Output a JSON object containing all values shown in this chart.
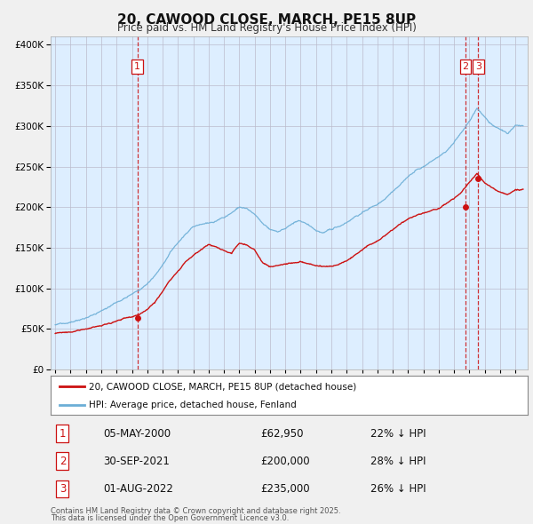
{
  "title": "20, CAWOOD CLOSE, MARCH, PE15 8UP",
  "subtitle": "Price paid vs. HM Land Registry's House Price Index (HPI)",
  "legend_line1": "20, CAWOOD CLOSE, MARCH, PE15 8UP (detached house)",
  "legend_line2": "HPI: Average price, detached house, Fenland",
  "footer1": "Contains HM Land Registry data © Crown copyright and database right 2025.",
  "footer2": "This data is licensed under the Open Government Licence v3.0.",
  "transactions": [
    {
      "num": 1,
      "date": "05-MAY-2000",
      "price": "£62,950",
      "pct": "22% ↓ HPI",
      "year": 2000.35
    },
    {
      "num": 2,
      "date": "30-SEP-2021",
      "price": "£200,000",
      "pct": "28% ↓ HPI",
      "year": 2021.75
    },
    {
      "num": 3,
      "date": "01-AUG-2022",
      "price": "£235,000",
      "pct": "26% ↓ HPI",
      "year": 2022.58
    }
  ],
  "vline_years": [
    2000.35,
    2021.75,
    2022.58
  ],
  "sale_points": [
    {
      "year": 2000.35,
      "price": 62950
    },
    {
      "year": 2021.75,
      "price": 200000
    },
    {
      "year": 2022.58,
      "price": 235000
    }
  ],
  "hpi_color": "#6baed6",
  "price_color": "#cc1111",
  "background_color": "#f0f0f0",
  "plot_bg_color": "#ddeeff",
  "ylim": [
    0,
    410000
  ],
  "xlim": [
    1994.7,
    2025.8
  ],
  "yticks": [
    0,
    50000,
    100000,
    150000,
    200000,
    250000,
    300000,
    350000,
    400000
  ],
  "hpi_anchor_years": [
    1995.0,
    1995.5,
    1996.0,
    1996.5,
    1997.0,
    1997.5,
    1998.0,
    1998.5,
    1999.0,
    1999.5,
    2000.0,
    2000.5,
    2001.0,
    2001.5,
    2002.0,
    2002.5,
    2003.0,
    2003.5,
    2004.0,
    2004.5,
    2005.0,
    2005.5,
    2006.0,
    2006.5,
    2007.0,
    2007.5,
    2008.0,
    2008.5,
    2009.0,
    2009.5,
    2010.0,
    2010.5,
    2011.0,
    2011.5,
    2012.0,
    2012.5,
    2013.0,
    2013.5,
    2014.0,
    2014.5,
    2015.0,
    2015.5,
    2016.0,
    2016.5,
    2017.0,
    2017.5,
    2018.0,
    2018.5,
    2019.0,
    2019.5,
    2020.0,
    2020.5,
    2021.0,
    2021.5,
    2022.0,
    2022.5,
    2023.0,
    2023.5,
    2024.0,
    2024.5,
    2025.0
  ],
  "hpi_anchor_vals": [
    55000,
    56000,
    59000,
    62000,
    66000,
    70000,
    74000,
    79000,
    85000,
    90000,
    95000,
    100000,
    108000,
    118000,
    130000,
    145000,
    157000,
    168000,
    175000,
    178000,
    180000,
    182000,
    187000,
    193000,
    200000,
    198000,
    190000,
    178000,
    170000,
    168000,
    172000,
    178000,
    180000,
    175000,
    168000,
    165000,
    168000,
    172000,
    178000,
    185000,
    190000,
    196000,
    200000,
    208000,
    218000,
    228000,
    238000,
    245000,
    250000,
    256000,
    262000,
    268000,
    278000,
    290000,
    305000,
    320000,
    310000,
    300000,
    295000,
    290000,
    300000
  ],
  "price_anchor_years": [
    1995.0,
    1995.5,
    1996.0,
    1996.5,
    1997.0,
    1997.5,
    1998.0,
    1998.5,
    1999.0,
    1999.5,
    2000.0,
    2000.5,
    2001.0,
    2001.5,
    2002.0,
    2002.5,
    2003.0,
    2003.5,
    2004.0,
    2004.5,
    2005.0,
    2005.5,
    2006.0,
    2006.5,
    2007.0,
    2007.5,
    2008.0,
    2008.5,
    2009.0,
    2009.5,
    2010.0,
    2010.5,
    2011.0,
    2011.5,
    2012.0,
    2012.5,
    2013.0,
    2013.5,
    2014.0,
    2014.5,
    2015.0,
    2015.5,
    2016.0,
    2016.5,
    2017.0,
    2017.5,
    2018.0,
    2018.5,
    2019.0,
    2019.5,
    2020.0,
    2020.5,
    2021.0,
    2021.5,
    2022.0,
    2022.5,
    2023.0,
    2023.5,
    2024.0,
    2024.5,
    2025.0
  ],
  "price_anchor_vals": [
    44000,
    45000,
    46000,
    48000,
    50000,
    52000,
    54000,
    57000,
    60000,
    62000,
    63000,
    65000,
    72000,
    82000,
    95000,
    110000,
    122000,
    134000,
    142000,
    148000,
    155000,
    152000,
    148000,
    143000,
    155000,
    153000,
    148000,
    133000,
    127000,
    128000,
    130000,
    132000,
    133000,
    130000,
    128000,
    127000,
    128000,
    130000,
    135000,
    142000,
    148000,
    155000,
    158000,
    165000,
    172000,
    180000,
    185000,
    190000,
    193000,
    197000,
    200000,
    205000,
    210000,
    218000,
    230000,
    240000,
    228000,
    222000,
    218000,
    215000,
    222000
  ]
}
